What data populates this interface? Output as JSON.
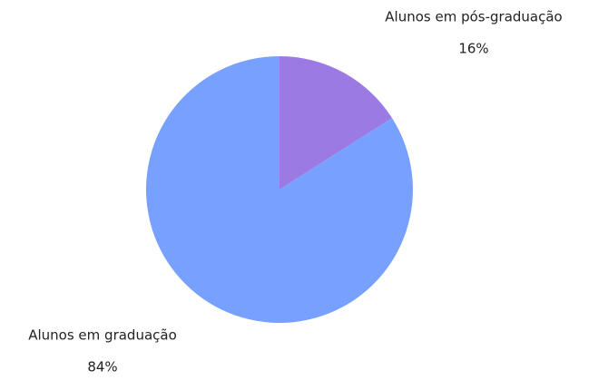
{
  "chart_data": {
    "type": "pie",
    "categories": [
      "Alunos em pós-graduação",
      "Alunos em graduação"
    ],
    "values": [
      16,
      84
    ],
    "value_labels": [
      "16%",
      "84%"
    ],
    "colors": [
      "#9b7be3",
      "#78a0ff"
    ]
  }
}
